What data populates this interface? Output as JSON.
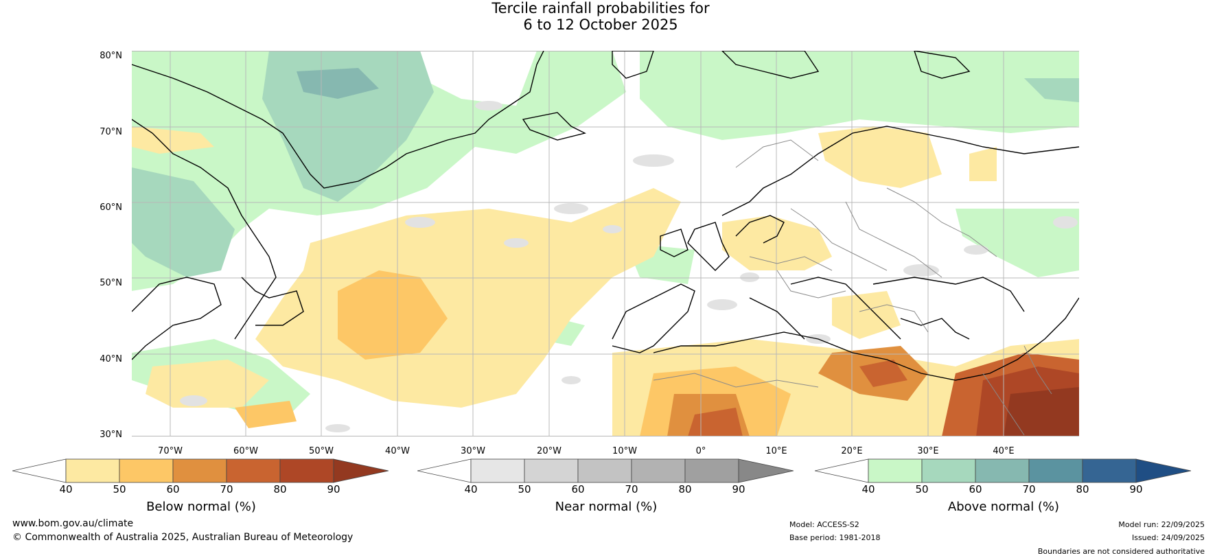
{
  "title": {
    "line1": "Tercile rainfall probabilities for",
    "line2": "6 to 12 October 2025"
  },
  "lat_labels": [
    "80°N",
    "70°N",
    "60°N",
    "50°N",
    "40°N",
    "30°N"
  ],
  "lon_labels": [
    "70°W",
    "60°W",
    "50°W",
    "40°W",
    "30°W",
    "20°W",
    "10°W",
    "0°",
    "10°E",
    "20°E",
    "30°E",
    "40°E"
  ],
  "colorbars": [
    {
      "label": "Below normal (%)",
      "ticks": [
        "40",
        "50",
        "60",
        "70",
        "80",
        "90"
      ],
      "colors": [
        "#ffffff",
        "#fde9a2",
        "#fdc766",
        "#e0903f",
        "#c96430",
        "#ae4726",
        "#933920"
      ]
    },
    {
      "label": "Near normal (%)",
      "ticks": [
        "40",
        "50",
        "60",
        "70",
        "80",
        "90"
      ],
      "colors": [
        "#ffffff",
        "#e6e6e6",
        "#d4d4d4",
        "#c3c3c3",
        "#b2b2b2",
        "#a0a0a0",
        "#888888"
      ]
    },
    {
      "label": "Above normal (%)",
      "ticks": [
        "40",
        "50",
        "60",
        "70",
        "80",
        "90"
      ],
      "colors": [
        "#ffffff",
        "#c9f7c7",
        "#a6d8bd",
        "#86b8b0",
        "#5b93a0",
        "#356593",
        "#1f4e84"
      ]
    }
  ],
  "footer": {
    "url": "www.bom.gov.au/climate",
    "copyright": "© Commonwealth of Australia 2025, Australian Bureau of Meteorology",
    "model": "Model: ACCESS-S2",
    "base_period": "Base period: 1981-2018",
    "model_run": "Model run: 22/09/2025",
    "issued": "Issued: 24/09/2025",
    "disclaimer": "Boundaries are not considered authoritative"
  }
}
